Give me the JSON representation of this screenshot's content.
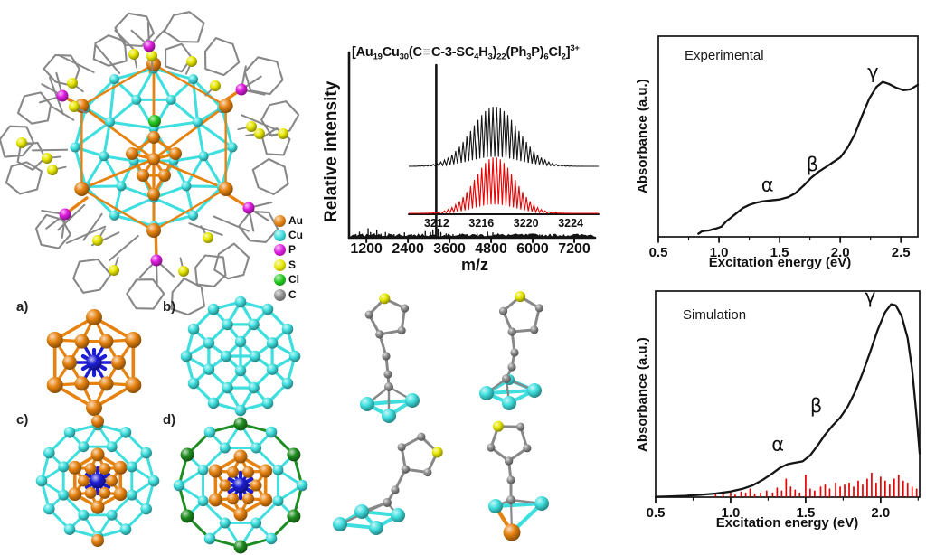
{
  "palette": {
    "au": "#e6820f",
    "cu": "#3fdfdf",
    "p": "#e01ce0",
    "s": "#e8e800",
    "cl": "#22c81e",
    "c": "#8c8c8c",
    "blue": "#1c1cd2",
    "green_dark": "#1e8c1e",
    "bond_gray": "#888888",
    "red": "#e60000",
    "black": "#141414"
  },
  "cluster_legend": {
    "items": [
      {
        "label": "Au",
        "color_key": "au"
      },
      {
        "label": "Cu",
        "color_key": "cu"
      },
      {
        "label": "P",
        "color_key": "p"
      },
      {
        "label": "S",
        "color_key": "s"
      },
      {
        "label": "Cl",
        "color_key": "cl"
      },
      {
        "label": "C",
        "color_key": "c"
      }
    ]
  },
  "panels": {
    "a": "a)",
    "b": "b)",
    "c": "c)",
    "d": "d)"
  },
  "formula_segments": [
    {
      "t": "[Au",
      "s": "n"
    },
    {
      "t": "19",
      "s": "sub"
    },
    {
      "t": "Cu",
      "s": "n"
    },
    {
      "t": "30",
      "s": "sub"
    },
    {
      "t": "(C",
      "s": "n"
    },
    {
      "t": "≡",
      "s": "bond"
    },
    {
      "t": "C-3-SC",
      "s": "n"
    },
    {
      "t": "4",
      "s": "sub"
    },
    {
      "t": "H",
      "s": "n"
    },
    {
      "t": "3",
      "s": "sub"
    },
    {
      "t": ")",
      "s": "n"
    },
    {
      "t": "22",
      "s": "sub"
    },
    {
      "t": "(Ph",
      "s": "n"
    },
    {
      "t": "3",
      "s": "sub"
    },
    {
      "t": "P)",
      "s": "n"
    },
    {
      "t": "6",
      "s": "sub"
    },
    {
      "t": "Cl",
      "s": "n"
    },
    {
      "t": "2",
      "s": "sub"
    },
    {
      "t": "]",
      "s": "n"
    },
    {
      "t": "3+",
      "s": "sup"
    }
  ],
  "chart_data": [
    {
      "type": "line",
      "id": "mass-spectrum",
      "title": "ESI-MS of [Au19Cu30(C≡C-3-SC4H3)22(Ph3P)6Cl2]3+",
      "xlabel": "m/z",
      "ylabel": "Relative intensity",
      "xticks": [
        1200,
        2400,
        3600,
        4800,
        6000,
        7200
      ],
      "xlim": [
        700,
        7800
      ],
      "main_peak_mz": 3216,
      "peaks": [
        [
          900,
          0.018
        ],
        [
          1000,
          0.032
        ],
        [
          1080,
          0.02
        ],
        [
          1250,
          0.052
        ],
        [
          1320,
          0.03
        ],
        [
          1430,
          0.022
        ],
        [
          1500,
          0.042
        ],
        [
          1620,
          0.02
        ],
        [
          1750,
          0.03
        ],
        [
          1850,
          0.022
        ],
        [
          2000,
          0.018
        ],
        [
          2150,
          0.02
        ],
        [
          2300,
          0.028
        ],
        [
          2500,
          0.018
        ],
        [
          2700,
          0.02
        ],
        [
          2900,
          0.035
        ],
        [
          3050,
          0.03
        ],
        [
          3120,
          0.045
        ],
        [
          3216,
          1.0
        ],
        [
          3270,
          0.05
        ],
        [
          3350,
          0.03
        ],
        [
          3500,
          0.022
        ],
        [
          3700,
          0.018
        ],
        [
          3900,
          0.02
        ],
        [
          4100,
          0.018
        ],
        [
          4400,
          0.02
        ],
        [
          4700,
          0.032
        ],
        [
          4850,
          0.028
        ],
        [
          5000,
          0.022
        ],
        [
          5300,
          0.018
        ],
        [
          5600,
          0.016
        ],
        [
          5900,
          0.02
        ],
        [
          6200,
          0.016
        ],
        [
          6500,
          0.018
        ],
        [
          6900,
          0.016
        ],
        [
          7300,
          0.014
        ],
        [
          7600,
          0.012
        ]
      ],
      "inset": {
        "xticks": [
          3212,
          3216,
          3220,
          3224
        ],
        "xlim": [
          3209.5,
          3226.5
        ],
        "center_mz": 3217.2,
        "series": [
          {
            "name": "experimental isotope pattern",
            "color": "#141414"
          },
          {
            "name": "simulated isotope pattern",
            "color": "#e60000"
          }
        ]
      }
    },
    {
      "type": "line",
      "id": "experimental-absorbance",
      "label": "Experimental",
      "xlabel": "Excitation energy (eV)",
      "ylabel": "Absorbance (a.u.)",
      "xticks": [
        0.5,
        1.0,
        1.5,
        2.0,
        2.5
      ],
      "xlim": [
        0.5,
        2.64
      ],
      "ylim": [
        0,
        1
      ],
      "points": [
        [
          0.83,
          0.012
        ],
        [
          0.86,
          0.02
        ],
        [
          0.89,
          0.026
        ],
        [
          0.92,
          0.03
        ],
        [
          0.95,
          0.036
        ],
        [
          0.98,
          0.044
        ],
        [
          1.02,
          0.06
        ],
        [
          1.06,
          0.08
        ],
        [
          1.1,
          0.1
        ],
        [
          1.15,
          0.125
        ],
        [
          1.2,
          0.15
        ],
        [
          1.25,
          0.165
        ],
        [
          1.3,
          0.175
        ],
        [
          1.36,
          0.183
        ],
        [
          1.43,
          0.188
        ],
        [
          1.5,
          0.193
        ],
        [
          1.57,
          0.205
        ],
        [
          1.63,
          0.225
        ],
        [
          1.7,
          0.265
        ],
        [
          1.76,
          0.305
        ],
        [
          1.82,
          0.335
        ],
        [
          1.88,
          0.36
        ],
        [
          1.94,
          0.385
        ],
        [
          2.0,
          0.41
        ],
        [
          2.06,
          0.46
        ],
        [
          2.12,
          0.53
        ],
        [
          2.18,
          0.625
        ],
        [
          2.24,
          0.715
        ],
        [
          2.3,
          0.775
        ],
        [
          2.35,
          0.8
        ],
        [
          2.4,
          0.79
        ],
        [
          2.46,
          0.77
        ],
        [
          2.52,
          0.757
        ],
        [
          2.58,
          0.762
        ],
        [
          2.64,
          0.785
        ]
      ],
      "annotations": [
        {
          "label": "α",
          "ev": 1.4,
          "v": 0.235
        },
        {
          "label": "β",
          "ev": 1.77,
          "v": 0.34
        },
        {
          "label": "γ",
          "ev": 2.27,
          "v": 0.82
        }
      ]
    },
    {
      "type": "line+stick",
      "id": "simulation-absorbance",
      "label": "Simulation",
      "xlabel": "Excitation energy (eV)",
      "ylabel": "Absorbance (a.u.)",
      "xticks": [
        0.5,
        1.0,
        1.5,
        2.0
      ],
      "xlim": [
        0.5,
        2.26
      ],
      "ylim": [
        0,
        1
      ],
      "points": [
        [
          0.5,
          0.002
        ],
        [
          0.6,
          0.004
        ],
        [
          0.7,
          0.007
        ],
        [
          0.8,
          0.012
        ],
        [
          0.9,
          0.018
        ],
        [
          1.0,
          0.028
        ],
        [
          1.08,
          0.042
        ],
        [
          1.15,
          0.06
        ],
        [
          1.22,
          0.09
        ],
        [
          1.28,
          0.12
        ],
        [
          1.33,
          0.148
        ],
        [
          1.38,
          0.166
        ],
        [
          1.43,
          0.173
        ],
        [
          1.48,
          0.18
        ],
        [
          1.53,
          0.21
        ],
        [
          1.58,
          0.26
        ],
        [
          1.63,
          0.315
        ],
        [
          1.68,
          0.36
        ],
        [
          1.73,
          0.4
        ],
        [
          1.78,
          0.455
        ],
        [
          1.83,
          0.53
        ],
        [
          1.88,
          0.625
        ],
        [
          1.93,
          0.73
        ],
        [
          1.98,
          0.84
        ],
        [
          2.03,
          0.93
        ],
        [
          2.07,
          0.97
        ],
        [
          2.1,
          0.965
        ],
        [
          2.14,
          0.91
        ],
        [
          2.18,
          0.8
        ],
        [
          2.21,
          0.64
        ],
        [
          2.24,
          0.4
        ],
        [
          2.26,
          0.22
        ]
      ],
      "stick_color": "#e60000",
      "sticks": [
        [
          0.9,
          0.01
        ],
        [
          0.95,
          0.015
        ],
        [
          1.0,
          0.02
        ],
        [
          1.03,
          0.01
        ],
        [
          1.07,
          0.025
        ],
        [
          1.1,
          0.02
        ],
        [
          1.13,
          0.04
        ],
        [
          1.16,
          0.015
        ],
        [
          1.2,
          0.02
        ],
        [
          1.24,
          0.03
        ],
        [
          1.28,
          0.02
        ],
        [
          1.31,
          0.045
        ],
        [
          1.34,
          0.03
        ],
        [
          1.37,
          0.09
        ],
        [
          1.4,
          0.05
        ],
        [
          1.43,
          0.035
        ],
        [
          1.46,
          0.02
        ],
        [
          1.5,
          0.11
        ],
        [
          1.53,
          0.04
        ],
        [
          1.56,
          0.03
        ],
        [
          1.6,
          0.05
        ],
        [
          1.63,
          0.06
        ],
        [
          1.66,
          0.04
        ],
        [
          1.7,
          0.07
        ],
        [
          1.73,
          0.05
        ],
        [
          1.76,
          0.06
        ],
        [
          1.79,
          0.07
        ],
        [
          1.82,
          0.05
        ],
        [
          1.85,
          0.08
        ],
        [
          1.88,
          0.06
        ],
        [
          1.91,
          0.09
        ],
        [
          1.94,
          0.12
        ],
        [
          1.97,
          0.07
        ],
        [
          2.0,
          0.1
        ],
        [
          2.03,
          0.08
        ],
        [
          2.06,
          0.06
        ],
        [
          2.09,
          0.09
        ],
        [
          2.12,
          0.11
        ],
        [
          2.15,
          0.08
        ],
        [
          2.18,
          0.07
        ],
        [
          2.21,
          0.05
        ],
        [
          2.24,
          0.04
        ]
      ],
      "annotations": [
        {
          "label": "α",
          "ev": 1.315,
          "v": 0.233
        },
        {
          "label": "β",
          "ev": 1.57,
          "v": 0.428
        },
        {
          "label": "γ",
          "ev": 1.93,
          "v": 0.977
        }
      ]
    }
  ]
}
